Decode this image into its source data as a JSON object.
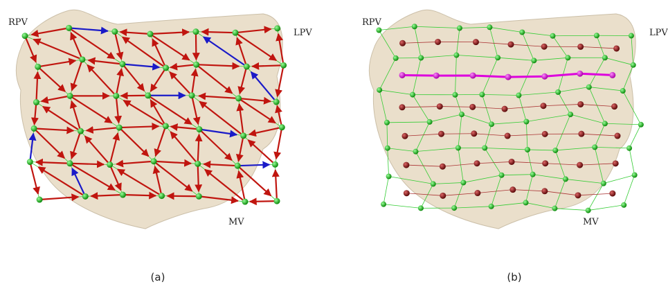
{
  "panels": [
    {
      "labels": {
        "rpv": "RPV",
        "lpv": "LPV",
        "mv": "MV"
      },
      "caption": "(a)"
    },
    {
      "labels": {
        "rpv": "RPV",
        "lpv": "LPV",
        "mv": "MV"
      },
      "caption": "(b)"
    }
  ]
}
